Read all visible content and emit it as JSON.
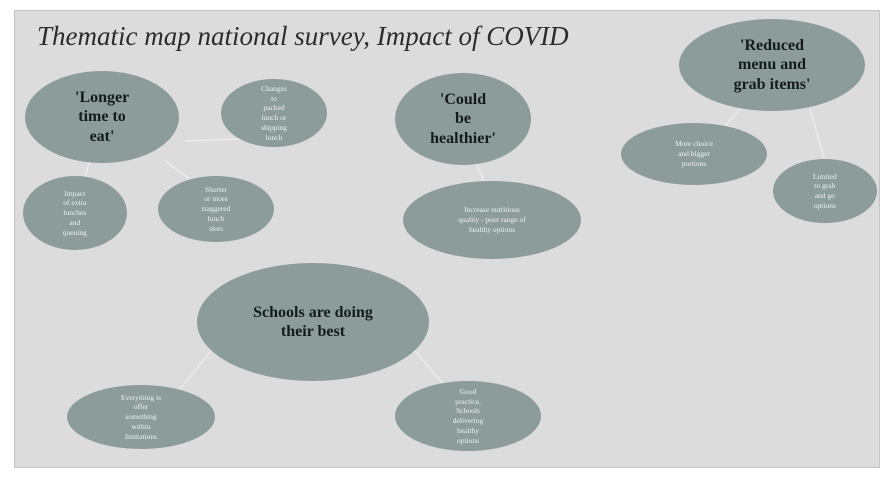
{
  "title": "Thematic map national survey, Impact of COVID",
  "themes": {
    "longer_time": {
      "label": "'Longer time to eat'",
      "sub1": "Impact of extra lunches and queuing",
      "sub2": "Shorter or more staggered lunch slots",
      "sub3": "Changes to packed lunch or shipping lunch"
    },
    "healthier": {
      "label": "'Could be healthier'",
      "sub1": "Increase nutritious quality - poor range of healthy options"
    },
    "reduced_menu": {
      "label": "'Reduced menu and grab items'",
      "sub1": "More choice and bigger portions",
      "sub2": "Limited to grab and go options"
    },
    "schools_best": {
      "label": "Schools are doing their best",
      "sub1": "Everything is offer something within limitations",
      "sub2": "Good practice. Schools delivering healthy options"
    }
  },
  "colors": {
    "bubble": "#8c9c9a",
    "slide_background": "#dcdcdc",
    "connector": "#f0f0f0"
  }
}
